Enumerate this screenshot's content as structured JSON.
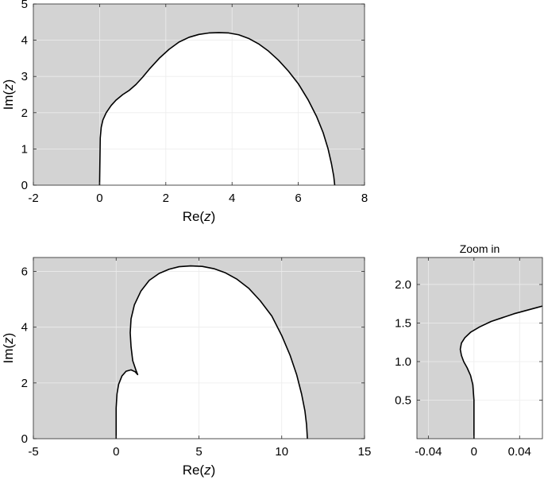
{
  "chart_data": [
    {
      "type": "line",
      "title": "",
      "xlabel": "Re(z)",
      "ylabel": "Im(z)",
      "xlim": [
        -2,
        8
      ],
      "ylim": [
        0,
        5
      ],
      "xticks": [
        "-2",
        "0",
        "2",
        "4",
        "6",
        "8"
      ],
      "yticks": [
        "0",
        "1",
        "2",
        "3",
        "4",
        "5"
      ],
      "grid": true,
      "background": "#d3d3d3",
      "region_fill": "#ffffff",
      "series": [
        {
          "x": [
            0,
            0.02,
            0.05,
            0.1,
            0.2,
            0.35,
            0.5,
            0.7,
            0.9,
            1.1,
            1.3,
            1.5,
            1.8,
            2.1,
            2.4,
            2.7,
            3.0,
            3.3,
            3.6,
            3.9,
            4.2,
            4.5,
            4.8,
            5.1,
            5.4,
            5.7,
            6.0,
            6.3,
            6.55,
            6.75,
            6.9,
            7.0,
            7.07,
            7.1
          ],
          "y": [
            0,
            1.3,
            1.6,
            1.8,
            2.0,
            2.2,
            2.35,
            2.5,
            2.62,
            2.78,
            2.98,
            3.2,
            3.5,
            3.75,
            3.95,
            4.08,
            4.16,
            4.2,
            4.21,
            4.2,
            4.15,
            4.05,
            3.9,
            3.7,
            3.45,
            3.15,
            2.8,
            2.35,
            1.9,
            1.45,
            1.0,
            0.6,
            0.25,
            0
          ]
        }
      ]
    },
    {
      "type": "line",
      "title": "",
      "xlabel": "Re(z)",
      "ylabel": "Im(z)",
      "xlim": [
        -5,
        15
      ],
      "ylim": [
        0,
        6.5
      ],
      "xticks": [
        "-5",
        "0",
        "5",
        "10",
        "15"
      ],
      "yticks": [
        "0",
        "2",
        "4",
        "6"
      ],
      "grid": true,
      "background": "#d3d3d3",
      "region_fill": "#ffffff",
      "series": [
        {
          "x": [
            0,
            0,
            0.05,
            0.15,
            0.35,
            0.6,
            0.9,
            1.15,
            1.3,
            1.2,
            1.0,
            0.9,
            0.85,
            0.9,
            1.1,
            1.5,
            2.0,
            2.6,
            3.2,
            3.8,
            4.5,
            5.2,
            5.9,
            6.6,
            7.3,
            8.0,
            8.7,
            9.4,
            10.0,
            10.5,
            10.9,
            11.2,
            11.4,
            11.5,
            11.55
          ],
          "y": [
            0,
            1.1,
            1.6,
            1.95,
            2.25,
            2.42,
            2.47,
            2.4,
            2.3,
            2.45,
            2.8,
            3.3,
            3.8,
            4.3,
            4.8,
            5.3,
            5.68,
            5.93,
            6.08,
            6.17,
            6.2,
            6.18,
            6.1,
            5.95,
            5.72,
            5.4,
            4.95,
            4.4,
            3.7,
            3.0,
            2.3,
            1.6,
            1.0,
            0.5,
            0
          ]
        }
      ]
    },
    {
      "type": "line",
      "title": "Zoom in",
      "xlabel": "",
      "ylabel": "",
      "xlim": [
        -0.05,
        0.06
      ],
      "ylim": [
        0,
        2.35
      ],
      "xticks": [
        "-0.04",
        "0",
        "0.04"
      ],
      "yticks": [
        "0.5",
        "1.0",
        "1.5",
        "2.0"
      ],
      "grid": true,
      "background": "#d3d3d3",
      "region_fill": "#ffffff",
      "series": [
        {
          "x": [
            0,
            0,
            -0.001,
            -0.003,
            -0.006,
            -0.009,
            -0.011,
            -0.012,
            -0.011,
            -0.008,
            -0.003,
            0.005,
            0.015,
            0.025,
            0.035,
            0.045,
            0.055,
            0.06
          ],
          "y": [
            0,
            0.5,
            0.7,
            0.82,
            0.92,
            1.0,
            1.08,
            1.16,
            1.24,
            1.31,
            1.38,
            1.45,
            1.52,
            1.57,
            1.62,
            1.66,
            1.7,
            1.72
          ]
        }
      ]
    }
  ]
}
